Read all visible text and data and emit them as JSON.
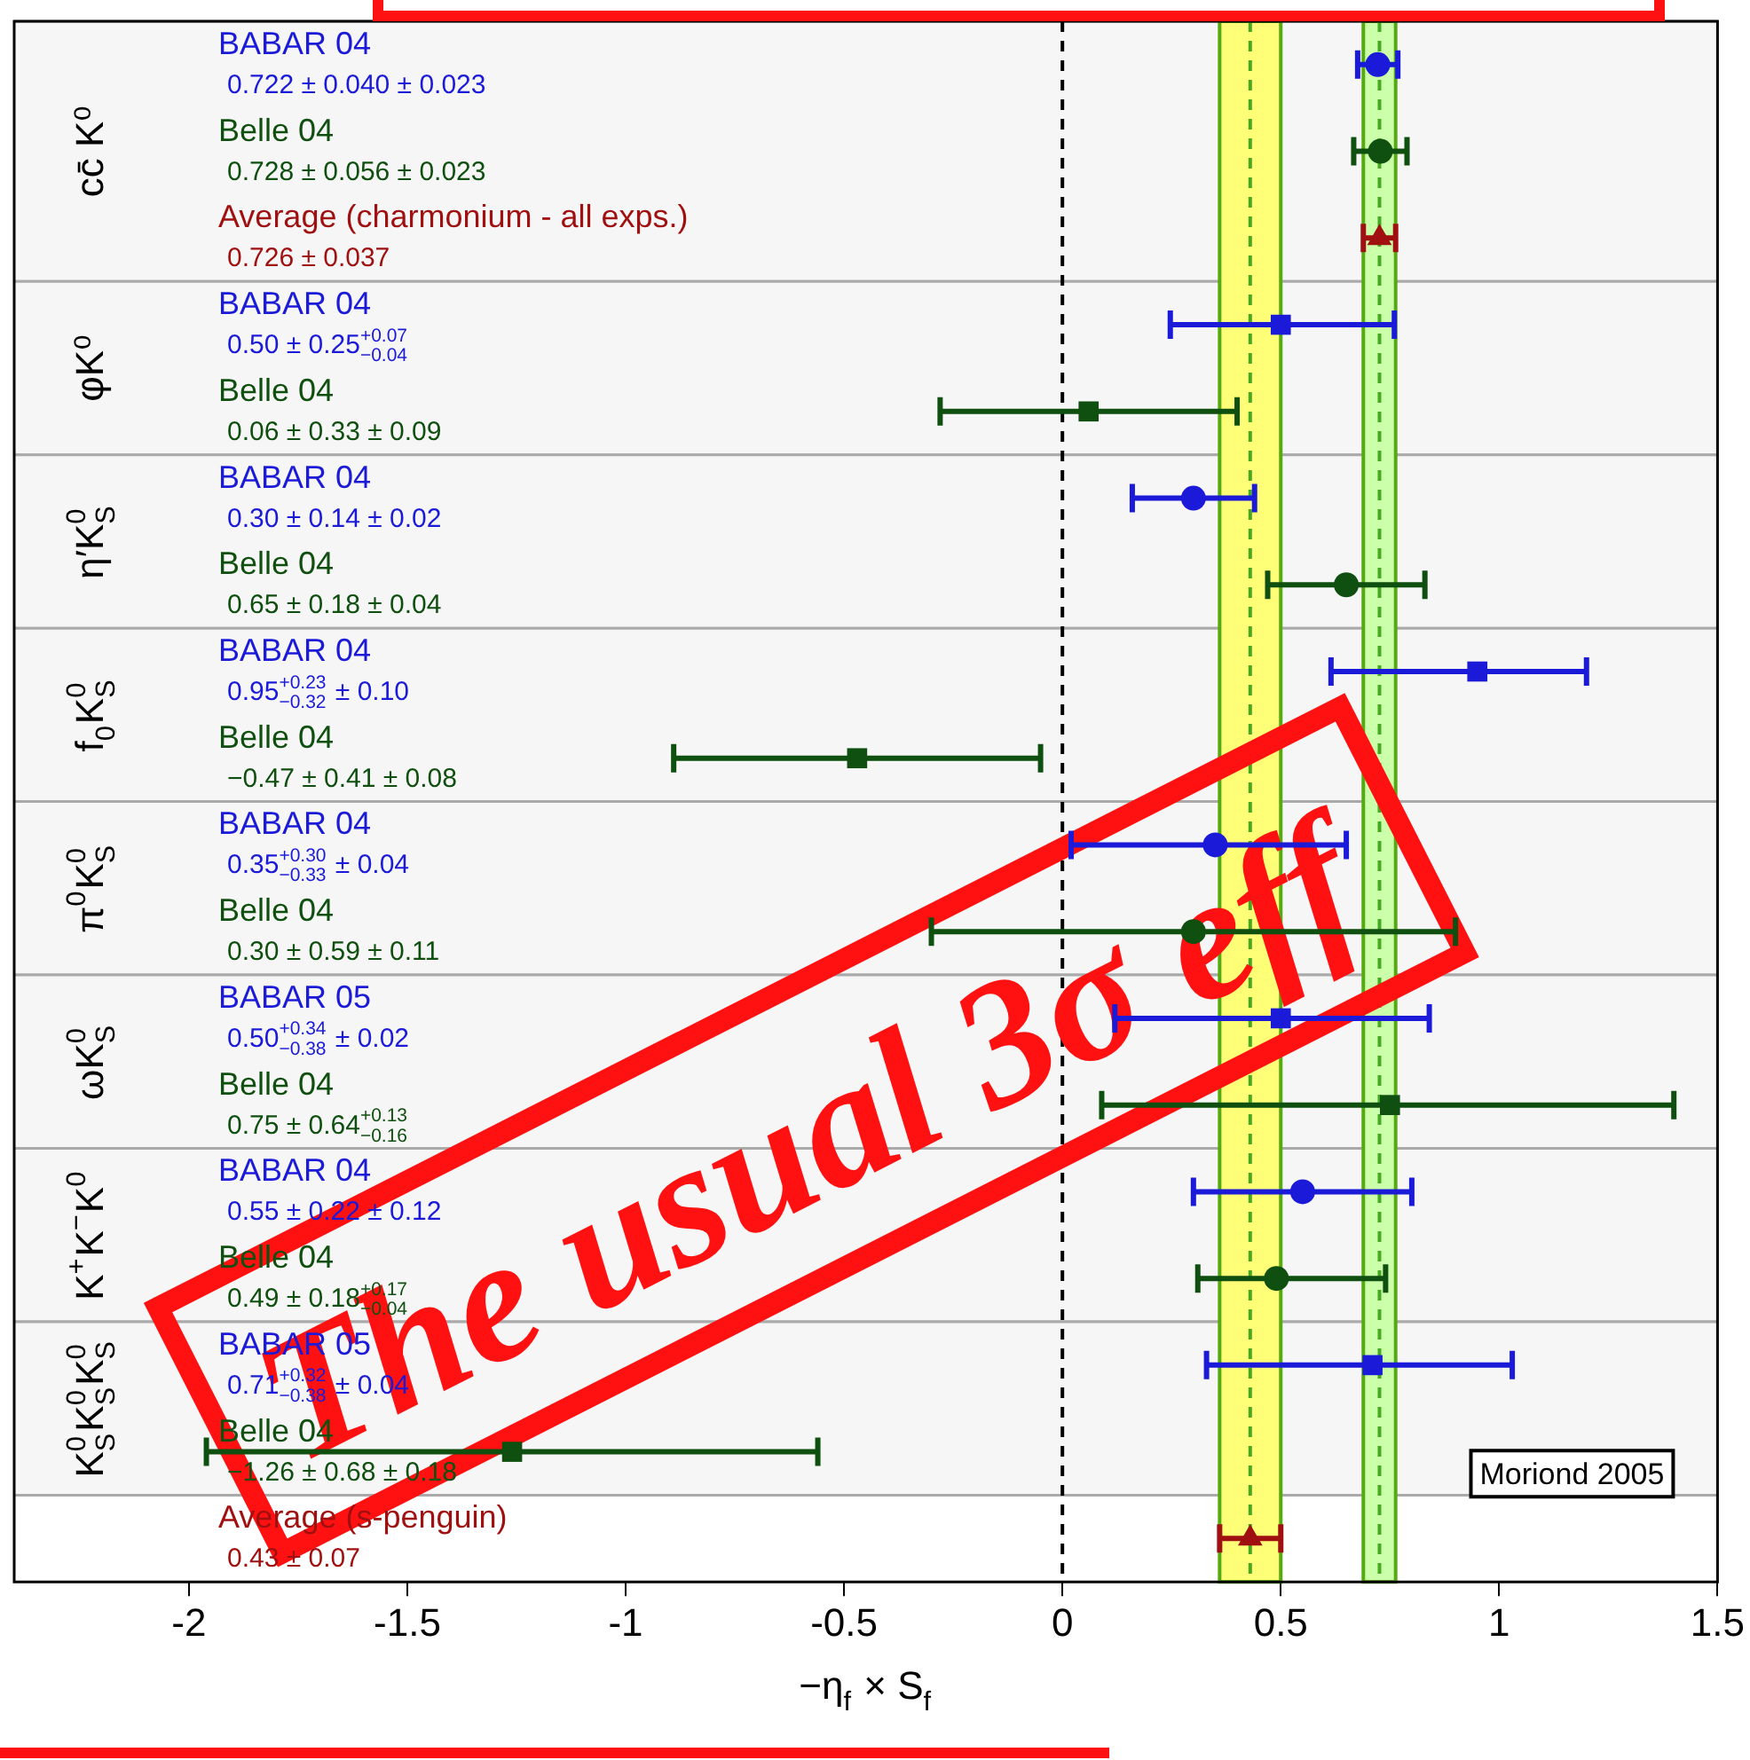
{
  "chart_data": {
    "type": "scatter",
    "orientation": "horizontal",
    "categories": [
      "BABAR 04\n0.722 ± 0.040 ± 0.023",
      "Belle 04\n0.728 ± 0.056 ± 0.023",
      "Average (charmonium - all exps.)\n0.726 ± 0.037",
      "BABAR 04\n0.50 ± 0.25$^{+0.07}$$_{−0.04}$",
      "Belle 04\n0.06 ± 0.33 ± 0.09",
      "BABAR 04\n0.30 ± 0.14 ± 0.02",
      "Belle 04\n0.65 ± 0.18 ± 0.04",
      "BABAR 04\n0.95$^{+0.23}$$_{−0.32}$ ± 0.10",
      "Belle 04\n−0.47 ± 0.41 ± 0.08",
      "BABAR 04\n0.35$^{+0.30}$$_{−0.33}$ ± 0.04",
      "Belle 04\n0.30 ± 0.59 ± 0.11",
      "BABAR 05\n0.50$^{+0.34}$$_{−0.38}$ ± 0.02",
      "Belle 04\n0.75 ± 0.64$^{+0.13}$$_{−0.16}$",
      "BABAR 04\n0.55 ± 0.22 ± 0.12",
      "Belle 04\n0.49 ± 0.18$^{+0.17}$$_{−0.04}$",
      "BABAR 05\n0.71$^{+0.32}$$_{−0.38}$ ± 0.04",
      "Belle 04\n−1.26 ± 0.68 ± 0.18",
      "Average (s-penguin)\n0.43 ± 0.07"
    ],
    "xlabel": "−η$_{f}$ × S$_{f}$",
    "xlim": [
      -2.4,
      1.5
    ],
    "xticks": [
      -2,
      -1.5,
      -1,
      -0.5,
      0,
      0.5,
      1,
      1.5
    ],
    "legend": false,
    "series": [
      {
        "color": "#1a1ad8",
        "marker": "circle",
        "values": [
          0.722,
          null,
          null,
          null,
          null,
          0.3,
          null,
          null,
          null,
          0.35,
          null,
          null,
          null,
          0.55,
          null,
          null,
          null,
          null
        ],
        "errors": [
          [
            0.676,
            0.768
          ],
          null,
          null,
          null,
          null,
          [
            0.16,
            0.44
          ],
          null,
          null,
          null,
          [
            0.02,
            0.65
          ],
          null,
          null,
          null,
          [
            0.3,
            0.8
          ],
          null,
          null,
          null,
          null
        ]
      },
      {
        "color": "#1a1ad8",
        "marker": "square",
        "values": [
          null,
          null,
          null,
          0.5,
          null,
          null,
          null,
          0.95,
          null,
          null,
          null,
          0.5,
          null,
          null,
          null,
          0.71,
          null,
          null
        ],
        "errors": [
          null,
          null,
          null,
          [
            0.247,
            0.76
          ],
          null,
          null,
          null,
          [
            0.615,
            1.2
          ],
          null,
          null,
          null,
          [
            0.12,
            0.84
          ],
          null,
          null,
          null,
          [
            0.33,
            1.03
          ],
          null,
          null
        ]
      },
      {
        "color": "#0f4f0f",
        "marker": "circle",
        "values": [
          null,
          0.728,
          null,
          null,
          null,
          null,
          0.65,
          null,
          null,
          null,
          0.3,
          null,
          null,
          null,
          0.49,
          null,
          null,
          null
        ],
        "errors": [
          null,
          [
            0.667,
            0.789
          ],
          null,
          null,
          null,
          null,
          [
            0.47,
            0.83
          ],
          null,
          null,
          null,
          [
            -0.3,
            0.9
          ],
          null,
          null,
          null,
          [
            0.31,
            0.74
          ],
          null,
          null,
          null
        ]
      },
      {
        "color": "#0f4f0f",
        "marker": "square",
        "values": [
          null,
          null,
          null,
          null,
          0.06,
          null,
          null,
          null,
          -0.47,
          null,
          null,
          null,
          0.75,
          null,
          null,
          null,
          -1.26,
          null
        ],
        "errors": [
          null,
          null,
          null,
          null,
          [
            -0.28,
            0.4
          ],
          null,
          null,
          null,
          [
            -0.89,
            -0.05
          ],
          null,
          null,
          null,
          [
            0.09,
            1.4
          ],
          null,
          null,
          null,
          [
            -1.96,
            -0.56
          ],
          null
        ]
      },
      {
        "color": "#a01010",
        "marker": "triangle",
        "values": [
          null,
          null,
          0.726,
          null,
          null,
          null,
          null,
          null,
          null,
          null,
          null,
          null,
          null,
          null,
          null,
          null,
          null,
          0.43
        ],
        "errors": [
          null,
          null,
          [
            0.689,
            0.763
          ],
          null,
          null,
          null,
          null,
          null,
          null,
          null,
          null,
          null,
          null,
          null,
          null,
          null,
          null,
          [
            0.36,
            0.5
          ]
        ]
      }
    ],
    "bands": [
      {
        "axis": "x",
        "from": 0.36,
        "to": 0.5,
        "color": "#ffff77"
      },
      {
        "axis": "x",
        "from": 0.689,
        "to": 0.763,
        "color": "#ccffaa"
      },
      {
        "axis": "y",
        "from": "BABAR 04\n0.722 ± 0.040 ± 0.023",
        "to": "Average (charmonium - all exps.)\n0.726 ± 0.037",
        "label": "cc̄ K⁰",
        "color": "#f6f6f6"
      },
      {
        "axis": "y",
        "from": "BABAR 04\n0.50 ± 0.25$^{+0.07}$$_{−0.04}$",
        "to": "Belle 04\n0.06 ± 0.33 ± 0.09",
        "label": "φK⁰",
        "color": "#f6f6f6"
      },
      {
        "axis": "y",
        "from": "BABAR 04\n0.30 ± 0.14 ± 0.02",
        "to": "Belle 04\n0.65 ± 0.18 ± 0.04",
        "label": "η′K$^{0}$$_{S}$",
        "color": "#f6f6f6"
      },
      {
        "axis": "y",
        "from": "BABAR 04\n0.95$^{+0.23}$$_{−0.32}$ ± 0.10",
        "to": "Belle 04\n−0.47 ± 0.41 ± 0.08",
        "label": "f$_{0}$K$^{0}$$_{S}$",
        "color": "#f6f6f6"
      },
      {
        "axis": "y",
        "from": "BABAR 04\n0.35$^{+0.30}$$_{−0.33}$ ± 0.04",
        "to": "Belle 04\n0.30 ± 0.59 ± 0.11",
        "label": "π$^{0}$K$^{0}$$_{S}$",
        "color": "#f6f6f6"
      },
      {
        "axis": "y",
        "from": "BABAR 05\n0.50$^{+0.34}$$_{−0.38}$ ± 0.02",
        "to": "Belle 04\n0.75 ± 0.64$^{+0.13}$$_{−0.16}$",
        "label": "ωK$^{0}$$_{S}$",
        "color": "#f6f6f6"
      },
      {
        "axis": "y",
        "from": "BABAR 04\n0.55 ± 0.22 ± 0.12",
        "to": "Belle 04\n0.49 ± 0.18$^{+0.17}$$_{−0.04}$",
        "label": "K$^{+}$K$^{−}$K$^{0}$",
        "color": "#f6f6f6"
      },
      {
        "axis": "y",
        "from": "BABAR 05\n0.71$^{+0.32}$$_{−0.38}$ ± 0.04",
        "to": "Belle 04\n−1.26 ± 0.68 ± 0.18",
        "label": "K$^{0}$$_{S}$K$^{0}$$_{S}$K$^{0}$$_{S}$",
        "color": "#f6f6f6"
      }
    ],
    "ref_lines": [
      {
        "axis": "x",
        "value": 0,
        "color": "#000000",
        "line_style": "dashed"
      },
      {
        "axis": "x",
        "value": 0.43,
        "color": "#44aa22",
        "line_style": "dashed"
      },
      {
        "axis": "x",
        "value": 0.726,
        "color": "#44aa22",
        "line_style": "dashed"
      }
    ],
    "annotations": [
      "The usual 3σ eff",
      "Moriond 2005"
    ]
  }
}
